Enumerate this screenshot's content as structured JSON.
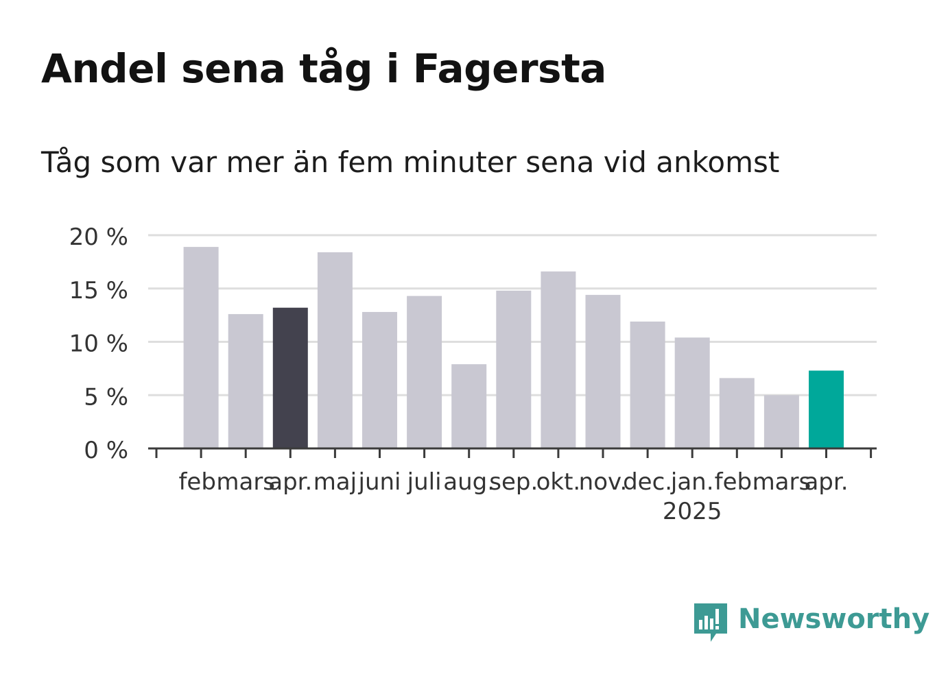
{
  "title": "Andel sena tåg i Fagersta",
  "subtitle": "Tåg som var mer än fem minuter sena vid ankomst",
  "brand": {
    "name": "Newsworthy",
    "logo_icon": "newsworthy-bar-chart-icon",
    "color": "#3d9a94"
  },
  "colors": {
    "default": "#c9c8d2",
    "highlight_start": "#43424e",
    "highlight_latest": "#00a89a",
    "axis": "#3b3b3b",
    "grid": "#dedede",
    "text": "#333333"
  },
  "chart_data": {
    "type": "bar",
    "title": "Andel sena tåg i Fagersta",
    "subtitle": "Tåg som var mer än fem minuter sena vid ankomst",
    "categories": [
      "feb.",
      "mars",
      "apr.",
      "maj",
      "juni",
      "juli",
      "aug.",
      "sep.",
      "okt.",
      "nov.",
      "dec.",
      "jan.",
      "feb.",
      "mars",
      "apr."
    ],
    "category_year_labels": [
      "",
      "",
      "",
      "",
      "",
      "",
      "",
      "",
      "",
      "",
      "",
      "2025",
      "",
      "",
      ""
    ],
    "values": [
      18.9,
      12.6,
      13.2,
      18.4,
      12.8,
      14.3,
      7.9,
      14.8,
      16.6,
      14.4,
      11.9,
      10.4,
      6.6,
      5.0,
      7.3
    ],
    "highlight": [
      "",
      "",
      "start",
      "",
      "",
      "",
      "",
      "",
      "",
      "",
      "",
      "",
      "",
      "",
      "latest"
    ],
    "ylim": [
      0,
      20
    ],
    "yticks": [
      0,
      5,
      10,
      15,
      20
    ],
    "ytick_labels": [
      "0 %",
      "5 %",
      "10 %",
      "15 %",
      "20 %"
    ],
    "xlabel": "",
    "ylabel": "",
    "grid": true,
    "legend": "none"
  }
}
